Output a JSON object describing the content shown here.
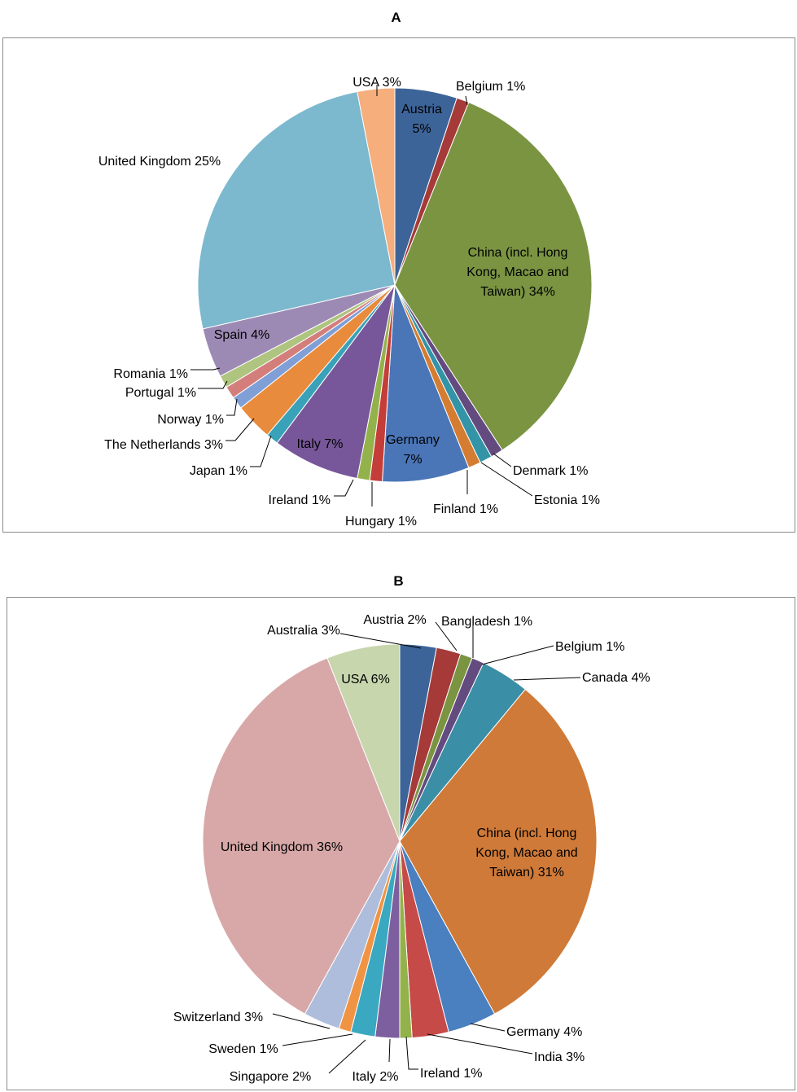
{
  "panels": {
    "a": {
      "title": "A"
    },
    "b": {
      "title": "B"
    }
  },
  "chart_data": [
    {
      "type": "pie",
      "title": "A",
      "start": "12 o'clock",
      "direction": "clockwise",
      "slices": [
        {
          "label": "Austria",
          "value": 5,
          "color": "#3d6498",
          "lines": [
            "Austria",
            "5%"
          ]
        },
        {
          "label": "Belgium",
          "value": 1,
          "color": "#a53a38",
          "lines": [
            "Belgium 1%"
          ]
        },
        {
          "label": "China (incl. Hong Kong, Macao and Taiwan)",
          "value": 34,
          "color": "#7a9442",
          "lines": [
            "China (incl. Hong",
            "Kong, Macao and",
            "Taiwan) 34%"
          ]
        },
        {
          "label": "Denmark",
          "value": 1,
          "color": "#634b80",
          "lines": [
            "Denmark 1%"
          ]
        },
        {
          "label": "Estonia",
          "value": 1,
          "color": "#3394a8",
          "lines": [
            "Estonia 1%"
          ]
        },
        {
          "label": "Finland",
          "value": 1,
          "color": "#d47c31",
          "lines": [
            "Finland 1%"
          ]
        },
        {
          "label": "Germany",
          "value": 7,
          "color": "#4a76b8",
          "lines": [
            "Germany",
            "7%"
          ]
        },
        {
          "label": "Hungary",
          "value": 1,
          "color": "#c43d39",
          "lines": [
            "Hungary 1%"
          ]
        },
        {
          "label": "Ireland",
          "value": 1,
          "color": "#94b24c",
          "lines": [
            "Ireland 1%"
          ]
        },
        {
          "label": "Italy",
          "value": 7,
          "color": "#77579a",
          "lines": [
            "Italy 7%"
          ]
        },
        {
          "label": "Japan",
          "value": 1,
          "color": "#3aa2b8",
          "lines": [
            "Japan 1%"
          ]
        },
        {
          "label": "The Netherlands",
          "value": 3,
          "color": "#e98b3c",
          "lines": [
            "The Netherlands 3%"
          ]
        },
        {
          "label": "Norway",
          "value": 1,
          "color": "#7f9fd6",
          "lines": [
            "Norway 1%"
          ]
        },
        {
          "label": "Portugal",
          "value": 1,
          "color": "#d47e7c",
          "lines": [
            "Portugal 1%"
          ]
        },
        {
          "label": "Romania",
          "value": 1,
          "color": "#aec47f",
          "lines": [
            "Romania 1%"
          ]
        },
        {
          "label": "Spain",
          "value": 4,
          "color": "#9d8ab4",
          "lines": [
            "Spain 4%"
          ]
        },
        {
          "label": "United Kingdom",
          "value": 25,
          "color": "#7cb8ce",
          "lines": [
            "United Kingdom 25%"
          ]
        },
        {
          "label": "USA",
          "value": 3,
          "color": "#f5ae7c",
          "lines": [
            "USA 3%"
          ]
        }
      ]
    },
    {
      "type": "pie",
      "title": "B",
      "start": "12 o'clock",
      "direction": "clockwise",
      "slices": [
        {
          "label": "Australia",
          "value": 3,
          "color": "#3d6498",
          "lines": [
            "Australia 3%"
          ]
        },
        {
          "label": "Austria",
          "value": 2,
          "color": "#a53a38",
          "lines": [
            "Austria 2%"
          ]
        },
        {
          "label": "Bangladesh",
          "value": 1,
          "color": "#7a9442",
          "lines": [
            "Bangladesh 1%"
          ]
        },
        {
          "label": "Belgium",
          "value": 1,
          "color": "#634b80",
          "lines": [
            "Belgium 1%"
          ]
        },
        {
          "label": "Canada",
          "value": 4,
          "color": "#3a8ea5",
          "lines": [
            "Canada 4%"
          ]
        },
        {
          "label": "China (incl. Hong Kong, Macao and Taiwan)",
          "value": 31,
          "color": "#cf7a38",
          "lines": [
            "China (incl. Hong",
            "Kong, Macao and",
            "Taiwan) 31%"
          ]
        },
        {
          "label": "Germany",
          "value": 4,
          "color": "#4a7fc0",
          "lines": [
            "Germany 4%"
          ]
        },
        {
          "label": "India",
          "value": 3,
          "color": "#c64a48",
          "lines": [
            "India 3%"
          ]
        },
        {
          "label": "Ireland",
          "value": 1,
          "color": "#94b24c",
          "lines": [
            "Ireland 1%"
          ]
        },
        {
          "label": "Italy",
          "value": 2,
          "color": "#7d5fa0",
          "lines": [
            "Italy 2%"
          ]
        },
        {
          "label": "Singapore",
          "value": 2,
          "color": "#3aa8c0",
          "lines": [
            "Singapore 2%"
          ]
        },
        {
          "label": "Sweden",
          "value": 1,
          "color": "#f09444",
          "lines": [
            "Sweden 1%"
          ]
        },
        {
          "label": "Switzerland",
          "value": 3,
          "color": "#aebddc",
          "lines": [
            "Switzerland 3%"
          ]
        },
        {
          "label": "United Kingdom",
          "value": 36,
          "color": "#d8a8a8",
          "lines": [
            "United Kingdom 36%"
          ]
        },
        {
          "label": "USA",
          "value": 6,
          "color": "#c7d6ad",
          "lines": [
            "USA 6%"
          ]
        }
      ]
    }
  ]
}
